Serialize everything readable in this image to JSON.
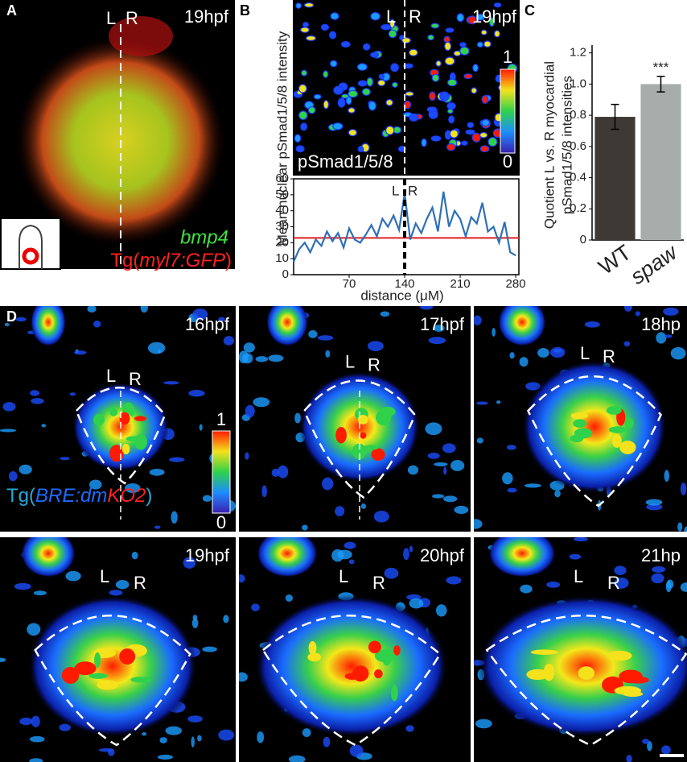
{
  "panel_a": {
    "letter": "A",
    "left": "L",
    "right": "R",
    "stage": "19hpf",
    "gene": "bmp4",
    "transgene": [
      "Tg(",
      "myl7:GFP",
      ")"
    ]
  },
  "panel_b": {
    "letter": "B",
    "left": "L",
    "right": "R",
    "stage": "19hpf",
    "scale_max": "1",
    "scale_min": "0",
    "stain": "pSmad1/5/8"
  },
  "chart_data": [
    {
      "type": "line",
      "ylabel": "Mean nuclear pSmad1/5/8 intensity",
      "xlabel": "distance (μM)",
      "left": "L",
      "right": "R",
      "x": [
        0,
        7,
        14,
        21,
        28,
        35,
        42,
        49,
        56,
        63,
        70,
        77,
        84,
        91,
        98,
        105,
        112,
        119,
        126,
        133,
        140,
        147,
        154,
        161,
        168,
        175,
        182,
        189,
        196,
        203,
        210,
        217,
        224,
        231,
        238,
        245,
        252,
        259,
        266,
        273,
        280
      ],
      "values": [
        8,
        16,
        20,
        14,
        22,
        18,
        27,
        21,
        26,
        17,
        29,
        22,
        20,
        25,
        31,
        24,
        35,
        30,
        37,
        28,
        51,
        22,
        32,
        26,
        35,
        42,
        27,
        52,
        30,
        40,
        35,
        24,
        36,
        32,
        45,
        27,
        30,
        20,
        33,
        14,
        12
      ],
      "color": "#2f6fb8",
      "reference_line": 23,
      "reference_color": "#e02020",
      "divider_x": 140,
      "xlim": [
        0,
        284
      ],
      "ylim": [
        0,
        60
      ],
      "xticks": [
        70,
        140,
        210,
        280
      ],
      "yticks": [
        0,
        10,
        20,
        30,
        40,
        50,
        60
      ]
    },
    {
      "type": "bar",
      "letter": "C",
      "ylabel": [
        "Quotient L vs. R myocardial",
        "pSmad1/5/8 intensities"
      ],
      "categories": [
        "WT",
        "spaw"
      ],
      "values": [
        0.79,
        1.0
      ],
      "errors": [
        0.08,
        0.05
      ],
      "colors": [
        "#3e3934",
        "#a7adab"
      ],
      "annotation": "***",
      "ylim": [
        0,
        1.25
      ],
      "yticks": [
        0,
        0.2,
        0.4,
        0.6,
        0.8,
        {
          "value": 1.0,
          "label": "1.0"
        },
        1.2
      ]
    }
  ],
  "panel_d": {
    "letter": "D",
    "scale_max": "1",
    "scale_min": "0",
    "transgene": [
      "Tg(",
      "BRE",
      ":dm",
      "KO2",
      ")"
    ],
    "frames": [
      {
        "stage": "16hpf",
        "left": "L",
        "right": "R"
      },
      {
        "stage": "17hpf",
        "left": "L",
        "right": "R"
      },
      {
        "stage": "18hp",
        "left": "L",
        "right": "R"
      },
      {
        "stage": "19hpf",
        "left": "L",
        "right": "R"
      },
      {
        "stage": "20hpf",
        "left": "L",
        "right": "R"
      },
      {
        "stage": "21hp",
        "left": "L",
        "right": "R"
      }
    ]
  }
}
